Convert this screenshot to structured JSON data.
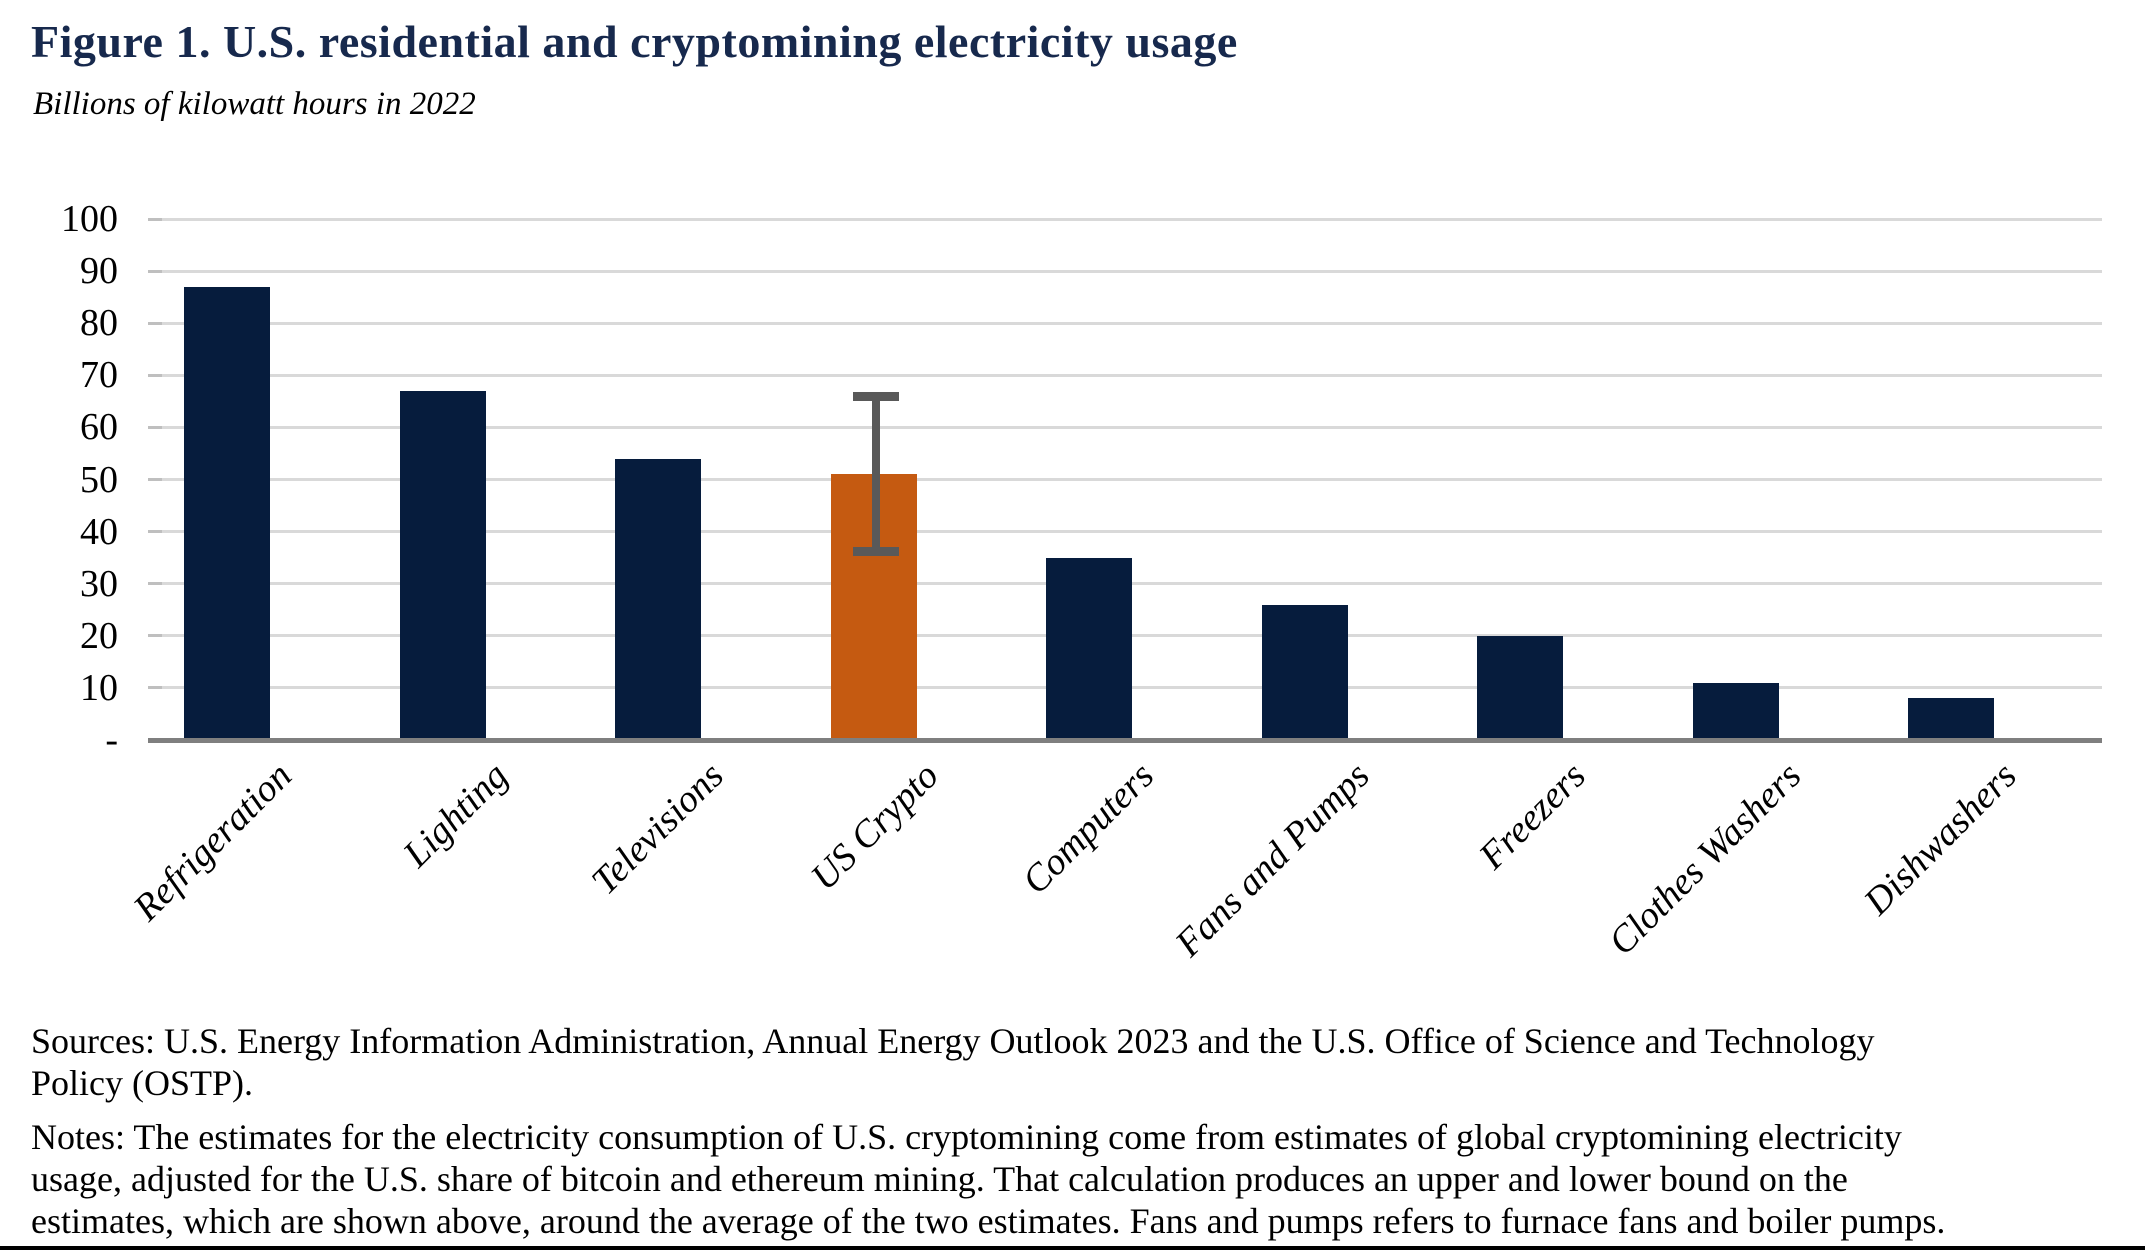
{
  "page": {
    "sources": "Sources: U.S. Energy Information Administration, Annual Energy Outlook 2023 and the U.S. Office of Science and Technology\nPolicy (OSTP).",
    "notes": "Notes: The estimates for the electricity consumption of U.S. cryptomining come from estimates of global cryptomining electricity\nusage, adjusted for the U.S. share of bitcoin and ethereum mining. That calculation produces an upper and lower bound on the\nestimates, which are shown above, around the average of the two estimates. Fans and pumps refers to furnace fans and boiler pumps."
  },
  "chart_data": {
    "type": "bar",
    "title": "Figure 1. U.S. residential and cryptomining electricity usage",
    "subtitle": "Billions of kilowatt hours in 2022",
    "categories": [
      "Refrigeration",
      "Lighting",
      "Televisions",
      "US Crypto",
      "Computers",
      "Fans and Pumps",
      "Freezers",
      "Clothes Washers",
      "Dishwashers"
    ],
    "values": [
      87,
      67,
      54,
      51,
      35,
      26,
      20,
      11,
      8
    ],
    "unit": "billions of kilowatt hours",
    "year": "2022",
    "highlight_category": "US Crypto",
    "error_bar": {
      "category": "US Crypto",
      "lower": 36,
      "upper": 66
    },
    "y_axis": {
      "min": 0,
      "max": 100,
      "tick_step": 10,
      "tick_labels": [
        "100",
        "90",
        "80",
        "70",
        "60",
        "50",
        "40",
        "30",
        "20",
        "10",
        "-"
      ],
      "gridlines": true
    },
    "x_axis": {
      "label_rotation_deg": 45
    },
    "legend": "none",
    "colors": {
      "bar": "#061C3D",
      "highlight_bar": "#C55A11",
      "error_bar": "#595959",
      "gridline": "#D9D9D9",
      "tick": "#BFBFBF",
      "axis_line": "#7F7F7F",
      "title_text": "#17294D",
      "body_text": "#000000"
    }
  }
}
